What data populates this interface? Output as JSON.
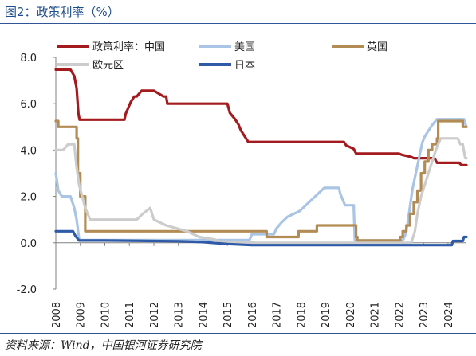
{
  "header": {
    "title": "图2：政策利率（%）"
  },
  "footer": {
    "source": "资料来源：Wind，中国银河证券研究院"
  },
  "chart_data": {
    "type": "line",
    "title": "图2：政策利率（%）",
    "xlabel": "",
    "ylabel": "",
    "ylim": [
      -2.0,
      8.0
    ],
    "yticks": [
      "8.0",
      "6.0",
      "4.0",
      "2.0",
      "0.0",
      "-2.0"
    ],
    "xlim": [
      2008,
      2024.75
    ],
    "xticks": [
      "2008",
      "2009",
      "2010",
      "2011",
      "2012",
      "2013",
      "2014",
      "2015",
      "2016",
      "2017",
      "2018",
      "2019",
      "2020",
      "2021",
      "2022",
      "2023",
      "2024"
    ],
    "legend_position": "top",
    "grid": false,
    "series": [
      {
        "name": "政策利率：中国",
        "color": "#a31b1f",
        "x": [
          2008.0,
          2008.6,
          2008.75,
          2008.8,
          2008.85,
          2008.92,
          2008.97,
          2010.0,
          2010.8,
          2010.85,
          2010.95,
          2011.05,
          2011.2,
          2011.3,
          2011.5,
          2011.6,
          2012.0,
          2012.4,
          2012.5,
          2012.55,
          2015.0,
          2015.1,
          2015.3,
          2015.45,
          2015.55,
          2015.7,
          2015.85,
          2019.75,
          2019.85,
          2020.15,
          2020.25,
          2022.0,
          2022.1,
          2022.5,
          2022.6,
          2023.45,
          2023.55,
          2024.45,
          2024.55,
          2024.7,
          2024.75
        ],
        "y": [
          7.47,
          7.47,
          7.2,
          6.93,
          6.66,
          5.58,
          5.31,
          5.31,
          5.31,
          5.56,
          5.81,
          6.06,
          6.31,
          6.31,
          6.56,
          6.56,
          6.56,
          6.31,
          6.31,
          6.0,
          6.0,
          5.6,
          5.35,
          5.1,
          4.85,
          4.6,
          4.35,
          4.35,
          4.2,
          4.05,
          3.85,
          3.85,
          3.8,
          3.7,
          3.65,
          3.65,
          3.45,
          3.45,
          3.35,
          3.35,
          3.35
        ]
      },
      {
        "name": "美国",
        "color": "#a9c4e4",
        "x": [
          2008.0,
          2008.1,
          2008.25,
          2008.3,
          2008.6,
          2008.75,
          2008.85,
          2008.95,
          2008.97,
          2015.9,
          2016.0,
          2016.9,
          2017.0,
          2017.2,
          2017.45,
          2017.95,
          2018.2,
          2018.45,
          2018.7,
          2018.95,
          2019.55,
          2019.6,
          2019.7,
          2019.8,
          2020.15,
          2020.2,
          2022.15,
          2022.25,
          2022.35,
          2022.45,
          2022.55,
          2022.7,
          2022.85,
          2022.95,
          2023.05,
          2023.2,
          2023.35,
          2023.55,
          2024.65,
          2024.72,
          2024.75
        ],
        "y": [
          3.0,
          2.25,
          2.0,
          2.0,
          2.0,
          1.5,
          1.0,
          0.16,
          0.12,
          0.12,
          0.37,
          0.37,
          0.62,
          0.87,
          1.12,
          1.37,
          1.62,
          1.87,
          2.12,
          2.37,
          2.37,
          2.12,
          1.87,
          1.62,
          1.62,
          0.1,
          0.1,
          0.33,
          0.83,
          1.58,
          2.33,
          3.08,
          3.83,
          4.33,
          4.58,
          4.83,
          5.08,
          5.33,
          5.33,
          5.08,
          5.0
        ]
      },
      {
        "name": "英国",
        "color": "#b38c55",
        "x": [
          2008.0,
          2008.1,
          2008.8,
          2008.85,
          2008.9,
          2009.0,
          2009.2,
          2016.55,
          2016.6,
          2017.85,
          2017.9,
          2018.6,
          2018.65,
          2020.2,
          2020.25,
          2020.3,
          2021.95,
          2022.05,
          2022.15,
          2022.3,
          2022.45,
          2022.6,
          2022.75,
          2022.9,
          2023.05,
          2023.2,
          2023.35,
          2023.55,
          2023.6,
          2024.55,
          2024.6,
          2024.75
        ],
        "y": [
          5.25,
          5.0,
          5.0,
          4.5,
          3.0,
          2.0,
          0.5,
          0.5,
          0.25,
          0.25,
          0.5,
          0.5,
          0.75,
          0.75,
          0.25,
          0.1,
          0.1,
          0.25,
          0.5,
          0.75,
          1.25,
          1.75,
          2.25,
          3.0,
          3.5,
          4.0,
          4.25,
          4.5,
          5.25,
          5.25,
          5.0,
          5.0
        ],
        "step": true
      },
      {
        "name": "欧元区",
        "color": "#cccccc",
        "x": [
          2008.0,
          2008.3,
          2008.5,
          2008.75,
          2008.85,
          2008.95,
          2009.2,
          2009.4,
          2011.3,
          2011.55,
          2011.85,
          2012.0,
          2012.5,
          2013.35,
          2013.85,
          2014.45,
          2014.7,
          2015.0,
          2016.2,
          2022.5,
          2022.65,
          2022.75,
          2022.9,
          2023.05,
          2023.2,
          2023.35,
          2023.5,
          2023.7,
          2024.4,
          2024.5,
          2024.6,
          2024.7,
          2024.75
        ],
        "y": [
          4.0,
          4.0,
          4.25,
          4.25,
          3.25,
          2.5,
          1.5,
          1.0,
          1.0,
          1.25,
          1.5,
          1.0,
          0.75,
          0.5,
          0.25,
          0.15,
          0.05,
          0.05,
          0.0,
          0.0,
          0.5,
          1.25,
          2.0,
          2.5,
          3.0,
          3.5,
          4.0,
          4.5,
          4.5,
          4.25,
          4.25,
          3.65,
          3.65
        ]
      },
      {
        "name": "日本",
        "color": "#2e5aa7",
        "x": [
          2008.0,
          2008.7,
          2008.8,
          2008.95,
          2010.0,
          2013.0,
          2014.0,
          2015.0,
          2016.0,
          2016.1,
          2023.9,
          2024.15,
          2024.2,
          2024.6,
          2024.65,
          2024.75
        ],
        "y": [
          0.5,
          0.5,
          0.3,
          0.1,
          0.1,
          0.07,
          0.03,
          -0.05,
          -0.1,
          -0.1,
          -0.1,
          -0.1,
          0.08,
          0.08,
          0.25,
          0.25
        ]
      }
    ]
  }
}
